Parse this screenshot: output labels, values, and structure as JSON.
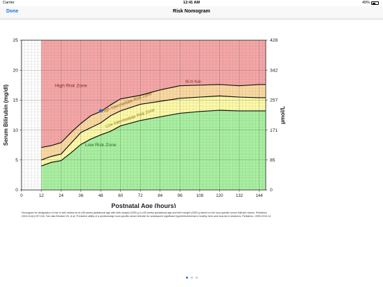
{
  "status_bar": {
    "carrier": "Carrier",
    "time": "12:41 AM",
    "battery_text": "49%",
    "battery_level": 0.49
  },
  "nav": {
    "done_label": "Done",
    "title": "Risk Nomogram"
  },
  "chart_data": {
    "type": "line",
    "xlabel": "Postnatal Age (hours)",
    "ylabel": "Serum Bilirubin (mg/dl)",
    "y2label": "µmol/L",
    "xlim": [
      0,
      148
    ],
    "ylim": [
      0,
      25
    ],
    "x_ticks": [
      0,
      12,
      24,
      36,
      48,
      60,
      72,
      84,
      96,
      108,
      120,
      132,
      144
    ],
    "y_ticks": [
      0,
      5,
      10,
      15,
      20,
      25
    ],
    "y2_ticks": [
      {
        "at": 0,
        "label": "0"
      },
      {
        "at": 5,
        "label": "85"
      },
      {
        "at": 10,
        "label": "171"
      },
      {
        "at": 15,
        "label": "257"
      },
      {
        "at": 20,
        "label": "342"
      },
      {
        "at": 25,
        "label": "428"
      }
    ],
    "grid": true,
    "zones": [
      {
        "name": "High Risk Zone",
        "color": "#f6a6a6"
      },
      {
        "name": "High Intermediate Risk Zone",
        "color": "#fbd9a0"
      },
      {
        "name": "Low Intermediate Risk Zone",
        "color": "#fdfaa8"
      },
      {
        "name": "Low Risk Zone",
        "color": "#a8f0a0"
      }
    ],
    "series": [
      {
        "name": "95 th %ile",
        "x": [
          12,
          18,
          24,
          30,
          36,
          42,
          48,
          54,
          60,
          72,
          84,
          96,
          108,
          120,
          132,
          144
        ],
        "values": [
          7.1,
          7.4,
          7.9,
          9.6,
          11.1,
          12.4,
          13.1,
          14.2,
          15.2,
          15.8,
          16.7,
          17.4,
          17.5,
          17.6,
          17.4,
          17.6
        ]
      },
      {
        "name": "",
        "x": [
          12,
          18,
          24,
          30,
          36,
          42,
          48,
          54,
          60,
          72,
          84,
          96,
          108,
          120,
          132,
          144
        ],
        "values": [
          5.0,
          5.6,
          6.0,
          7.8,
          9.6,
          10.4,
          11.2,
          12.4,
          13.2,
          14.3,
          14.8,
          15.3,
          15.5,
          15.7,
          15.5,
          15.4
        ]
      },
      {
        "name": "",
        "x": [
          12,
          18,
          24,
          30,
          36,
          42,
          48,
          54,
          60,
          72,
          84,
          96,
          108,
          120,
          132,
          144
        ],
        "values": [
          4.0,
          4.6,
          4.9,
          6.2,
          7.6,
          8.5,
          9.2,
          9.8,
          10.7,
          11.6,
          12.2,
          12.8,
          13.1,
          13.3,
          13.2,
          13.2
        ]
      }
    ],
    "point": {
      "x": 48,
      "y": 13.2,
      "color": "#1f66d8"
    },
    "annotations": {
      "high": "High Risk Zone",
      "high_intermediate": "High Intermediate Risk Zone",
      "low_intermediate": "Low Intermediate Risk Zone",
      "low": "Low Risk Zone",
      "percentile": "95 th %ile"
    }
  },
  "footnote": "Nomogram for designation of risk in well newborns at ≥36 weeks gestational age with birth weight ≥2000 g or ≥35 weeks gestational age and birth weight ≥2500 g based on the hour-specific serum bilirubin values. Pediatrics. 2004;114(1):297-316. See also Bhutani VK, et al. Predictive ability of a predischarge hour-specific serum bilirubin for subsequent significant hyperbilirubinemia in healthy term and near-term newborns. Pediatrics. 1999;103:6-14",
  "page_indicator": {
    "count": 3,
    "current": 0
  }
}
